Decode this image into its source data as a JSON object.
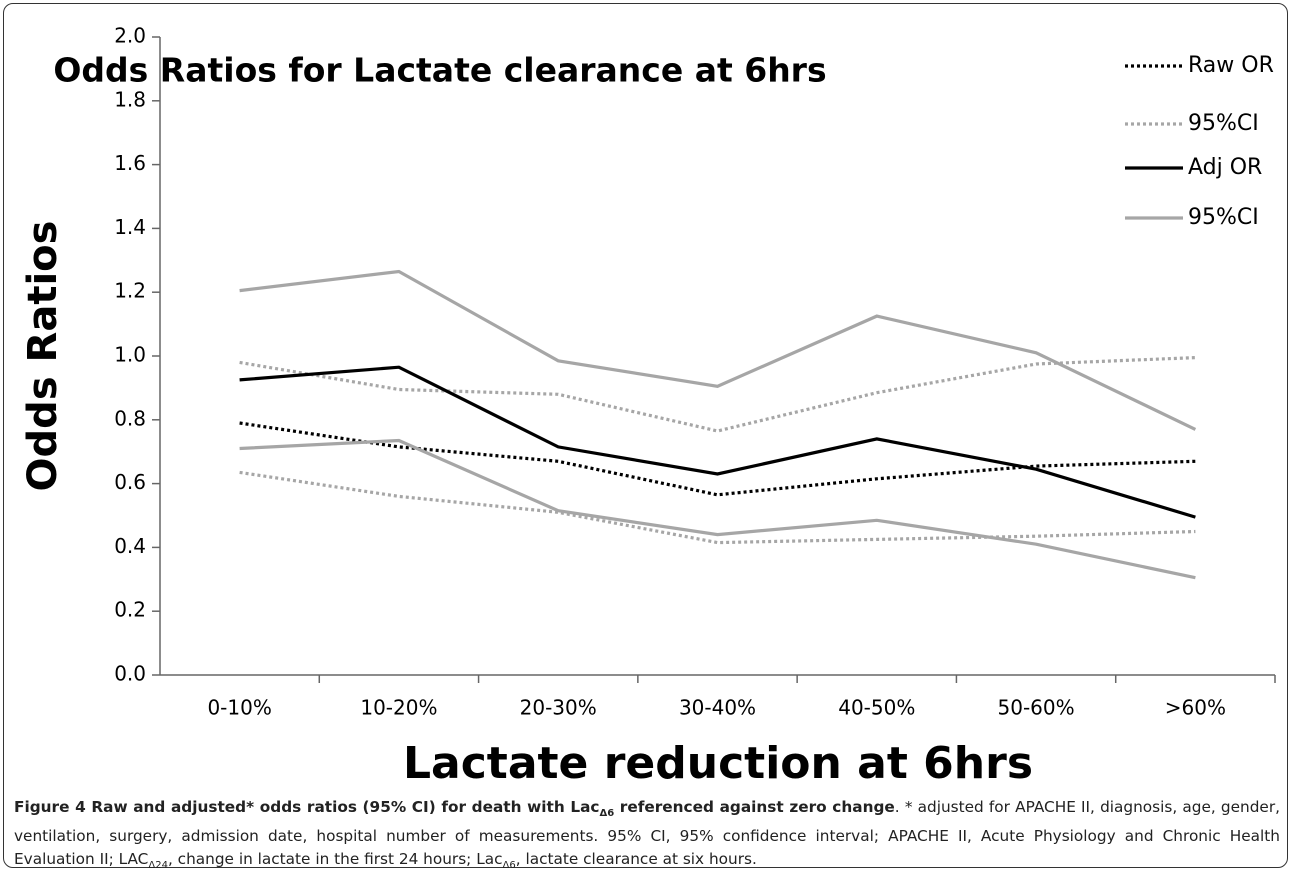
{
  "chart_data": {
    "type": "line",
    "title": "Odds Ratios for Lactate clearance at 6hrs",
    "x_label": "Lactate reduction at 6hrs",
    "y_label": "Odds Ratios",
    "categories": [
      "0-10%",
      "10-20%",
      "20-30%",
      "30-40%",
      "40-50%",
      "50-60%",
      ">60%"
    ],
    "series": [
      {
        "name": "Raw OR",
        "color": "#000000",
        "line_style": "dotted",
        "values": [
          0.79,
          0.715,
          0.67,
          0.565,
          0.615,
          0.655,
          0.67
        ]
      },
      {
        "name": "95%CI",
        "color": "#a6a6a6",
        "line_style": "dotted",
        "values": [
          0.98,
          0.895,
          0.88,
          0.765,
          0.885,
          0.975,
          0.995
        ]
      },
      {
        "name": "Adj OR",
        "color": "#000000",
        "line_style": "solid",
        "values": [
          0.925,
          0.965,
          0.715,
          0.63,
          0.74,
          0.645,
          0.495
        ]
      },
      {
        "name": "95%CI",
        "color": "#a6a6a6",
        "line_style": "solid",
        "values": [
          1.205,
          1.265,
          0.985,
          0.905,
          1.125,
          1.01,
          0.77
        ]
      },
      {
        "line_style": "dotted",
        "color": "#a6a6a6",
        "values": [
          0.635,
          0.56,
          0.51,
          0.415,
          0.425,
          0.435,
          0.45
        ]
      },
      {
        "line_style": "solid",
        "color": "#a6a6a6",
        "values": [
          0.71,
          0.735,
          0.515,
          0.44,
          0.485,
          0.41,
          0.305
        ]
      }
    ],
    "ylim": [
      0,
      2
    ],
    "yticks": [
      {
        "value": 0,
        "label": "0.0"
      },
      0.2,
      0.4,
      0.6,
      0.8,
      {
        "value": 1,
        "label": "1.0"
      },
      1.2,
      1.4,
      1.6,
      1.8,
      {
        "value": 2,
        "label": "2.0"
      }
    ],
    "grid": false,
    "legend": "upper right"
  },
  "caption": {
    "bold": [
      "Figure 4 Raw and adjusted* odds ratios (95% CI) for death with Lac",
      "Δ6",
      " referenced against zero change"
    ],
    "text": [
      ". * adjusted for APACHE II, diagnosis, age, gender, ventilation, surgery, admission date, hospital number of measurements. 95% CI, 95% confidence interval; APACHE II, Acute Physiology and Chronic Health Evaluation II; LAC",
      "Δ24",
      ", change in lactate in the first 24 hours; Lac",
      "Δ6",
      ", lactate clearance at six hours."
    ]
  }
}
